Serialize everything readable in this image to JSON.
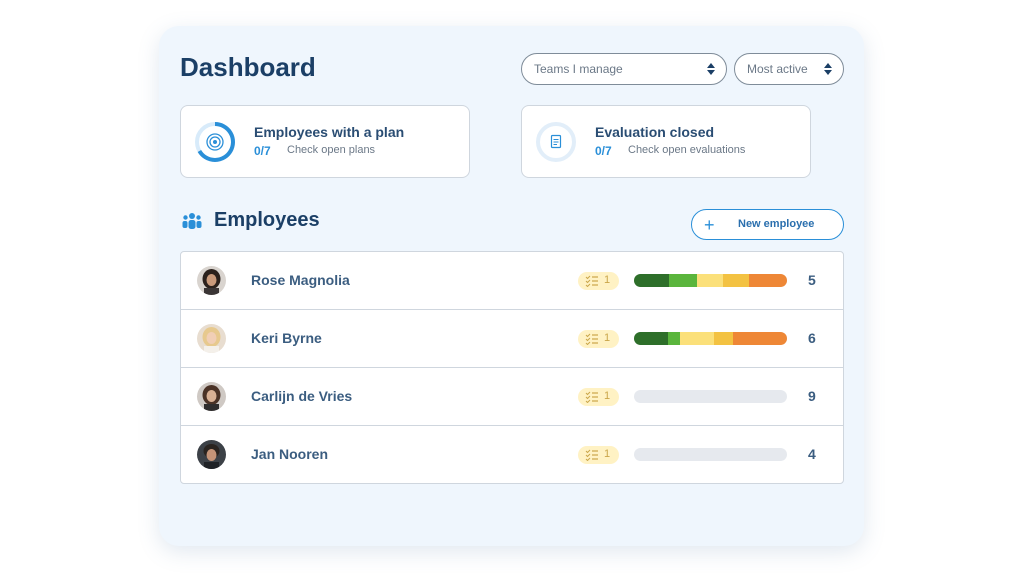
{
  "header": {
    "title": "Dashboard"
  },
  "filters": {
    "team_select": "Teams I manage",
    "sort_select": "Most active"
  },
  "stats": [
    {
      "title": "Employees with a plan",
      "count": "0/7",
      "link": "Check open plans",
      "icon": "target-icon"
    },
    {
      "title": "Evaluation closed",
      "count": "0/7",
      "link": "Check open evaluations",
      "icon": "document-icon"
    }
  ],
  "employees": {
    "heading": "Employees",
    "icon": "people-group-icon",
    "new_button_label": "New employee",
    "colors": {
      "dark_green": "#2e6f2a",
      "green": "#5ab53c",
      "light_yellow": "#fbe07a",
      "yellow": "#f3c242",
      "orange": "#ee8736",
      "empty": "#e6e9ee"
    },
    "rows": [
      {
        "name": "Rose Magnolia",
        "badge_count": "1",
        "score": "5",
        "segments": [
          0.23,
          0.18,
          0.17,
          0.17,
          0.25
        ]
      },
      {
        "name": "Keri Byrne",
        "badge_count": "1",
        "score": "6",
        "segments": [
          0.22,
          0.08,
          0.22,
          0.13,
          0.35
        ]
      },
      {
        "name": "Carlijn de Vries",
        "badge_count": "1",
        "score": "9",
        "segments": []
      },
      {
        "name": "Jan Nooren",
        "badge_count": "1",
        "score": "4",
        "segments": []
      }
    ]
  }
}
